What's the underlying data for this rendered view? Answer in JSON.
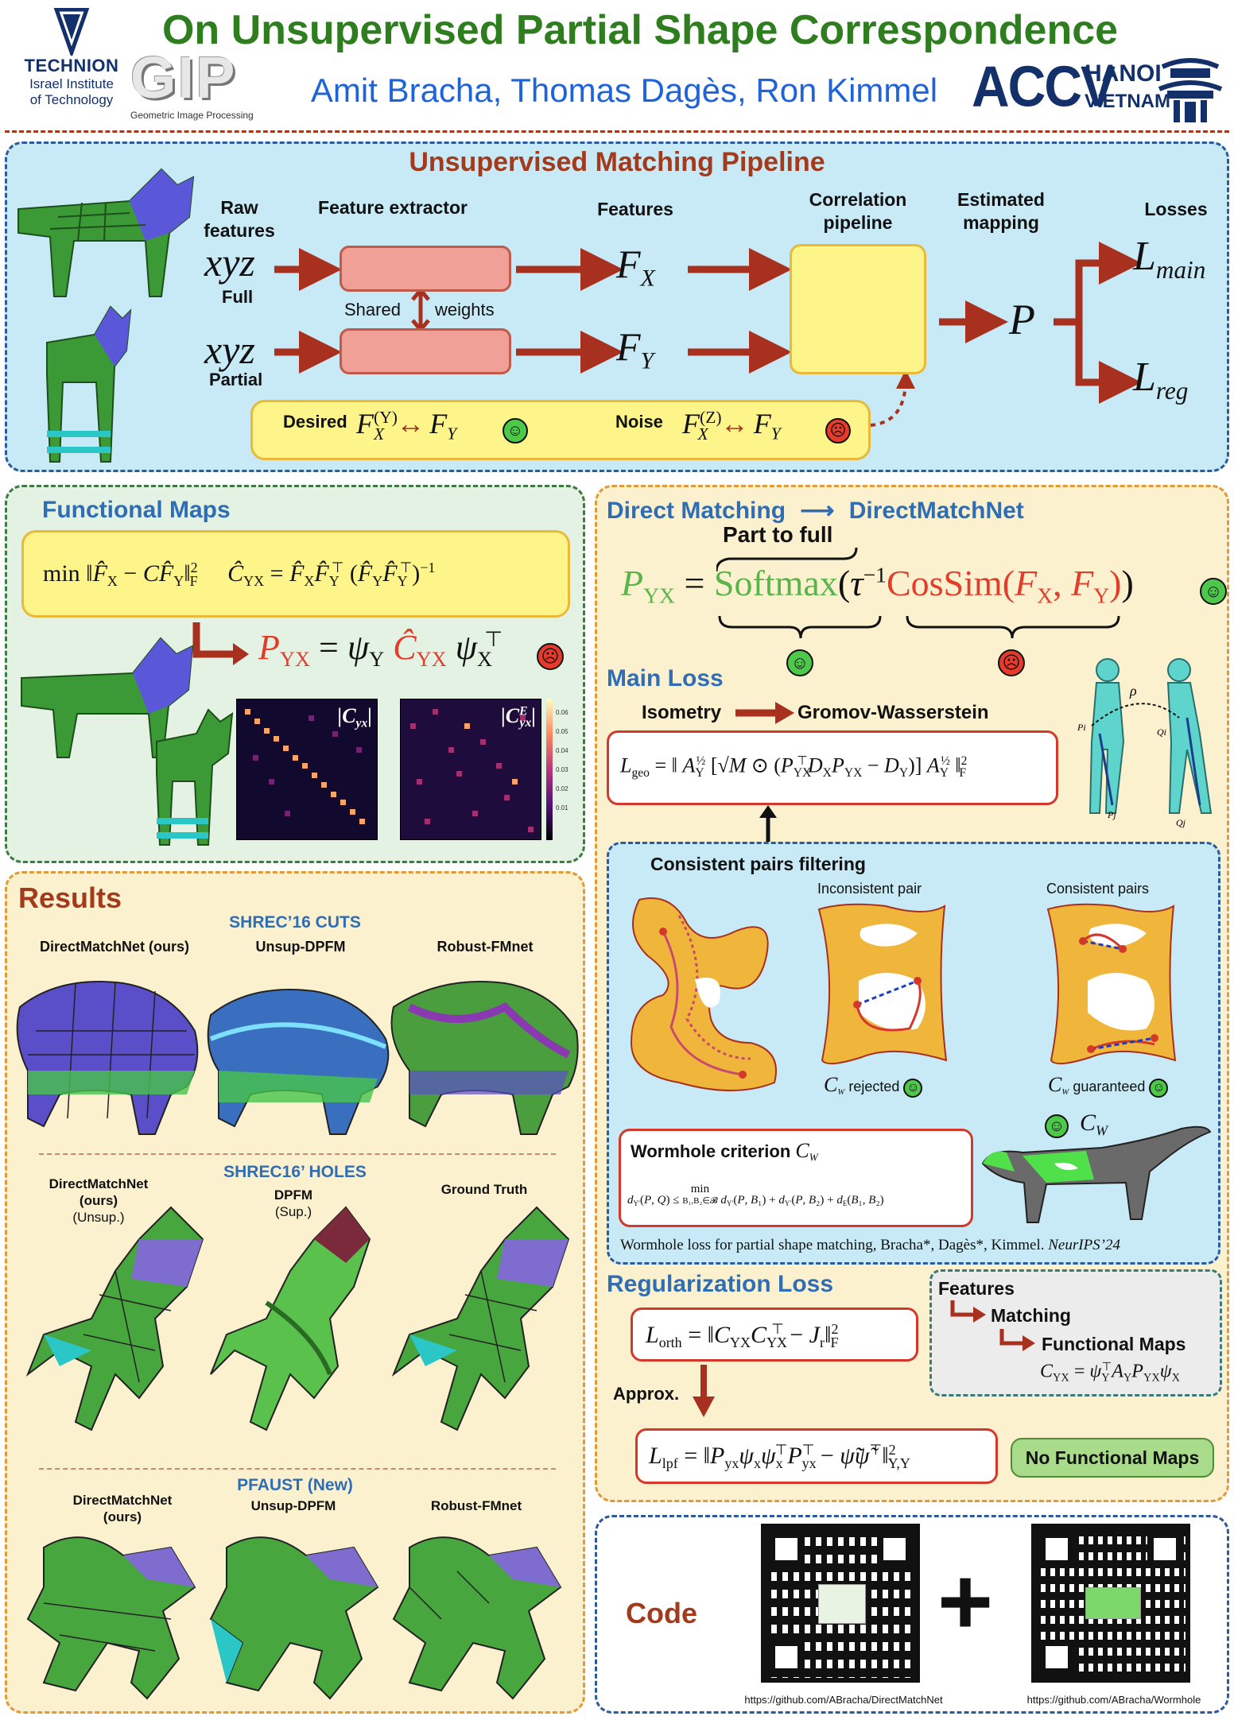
{
  "header": {
    "title": "On Unsupervised Partial Shape Correspondence",
    "authors": "Amit Bracha, Thomas Dagès, Ron Kimmel",
    "technion_name": "TECHNION",
    "technion_sub1": "Israel Institute",
    "technion_sub2": "of Technology",
    "gip_caption": "Geometric Image Processing",
    "accv": "ACCV",
    "accv_city": "HANOI",
    "accv_country": "VIETNAM",
    "gip_logo_text": "GIP"
  },
  "pipeline": {
    "title": "Unsupervised Matching Pipeline",
    "raw_features": "Raw features",
    "feature_extractor": "Feature extractor",
    "features": "Features",
    "correlation": "Correlation pipeline",
    "estimated": "Estimated mapping",
    "losses": "Losses",
    "xyz": "xyz",
    "full": "Full",
    "partial": "Partial",
    "shared": "Shared",
    "weights": "weights",
    "desired": "Desired",
    "noise": "Noise",
    "fx": "F",
    "fx_sub": "X",
    "fy_sub": "Y",
    "p": "P",
    "l": "L",
    "l_main_sub": "main",
    "l_reg_sub": "reg",
    "desired_sup": "(Y)",
    "noise_sup": "(Z)"
  },
  "fmaps": {
    "title": "Functional Maps",
    "heat1_label": "|C",
    "heat1_sub": "yx",
    "heat2_sub": "yx",
    "heat2_sup": "E",
    "colorbar_ticks": [
      "0.06",
      "0.05",
      "0.04",
      "0.03",
      "0.02",
      "0.01"
    ]
  },
  "direct": {
    "title": "Direct Matching",
    "net": "DirectMatchNet",
    "part_to_full": "Part to full",
    "softmax": "Softmax",
    "cossim": "CosSim"
  },
  "main_loss": {
    "title": "Main Loss",
    "isometry": "Isometry",
    "gw": "Gromov-Wasserstein",
    "rho": "ρ"
  },
  "consistent": {
    "title": "Consistent pairs filtering",
    "inconsistent_pair": "Inconsistent pair",
    "consistent_pairs": "Consistent pairs",
    "rejected": "rejected",
    "guaranteed": "guaranteed",
    "wormhole_title": "Wormhole criterion",
    "citation": "Wormhole loss for partial shape matching, Bracha*, Dagès*, Kimmel.",
    "venue": "NeurIPS’24",
    "cw": "C"
  },
  "reg": {
    "title": "Regularization Loss",
    "approx": "Approx.",
    "features": "Features",
    "matching": "Matching",
    "fmaps": "Functional Maps",
    "no_fmaps": "No Functional Maps"
  },
  "results": {
    "title": "Results",
    "shrec_cuts": "SHREC’16 CUTS",
    "shrec_holes": "SHREC16’ HOLES",
    "pfaust": "PFAUST (New)",
    "row1": [
      "DirectMatchNet (ours)",
      "Unsup-DPFM",
      "Robust-FMnet"
    ],
    "row2_a1": "DirectMatchNet",
    "row2_a2": "(ours)",
    "row2_a3": "(Unsup.)",
    "row2_b1": "DPFM",
    "row2_b2": "(Sup.)",
    "row2_c": "Ground Truth",
    "row3_a1": "DirectMatchNet",
    "row3_a2": "(ours)",
    "row3_b": "Unsup-DPFM",
    "row3_c": "Robust-FMnet"
  },
  "code": {
    "title": "Code",
    "plus": "+",
    "url1": "https://github.com/ABracha/DirectMatchNet",
    "url2": "https://github.com/ABracha/Wormhole"
  },
  "colors": {
    "title_green": "#2e7d1f",
    "author_blue": "#1f63d8",
    "section_red": "#a33a1c",
    "arrow_red": "#a8301f",
    "panel_blue": "#c8eaf6",
    "panel_green": "#e3f2e2",
    "panel_tan": "#fbf1cf"
  }
}
